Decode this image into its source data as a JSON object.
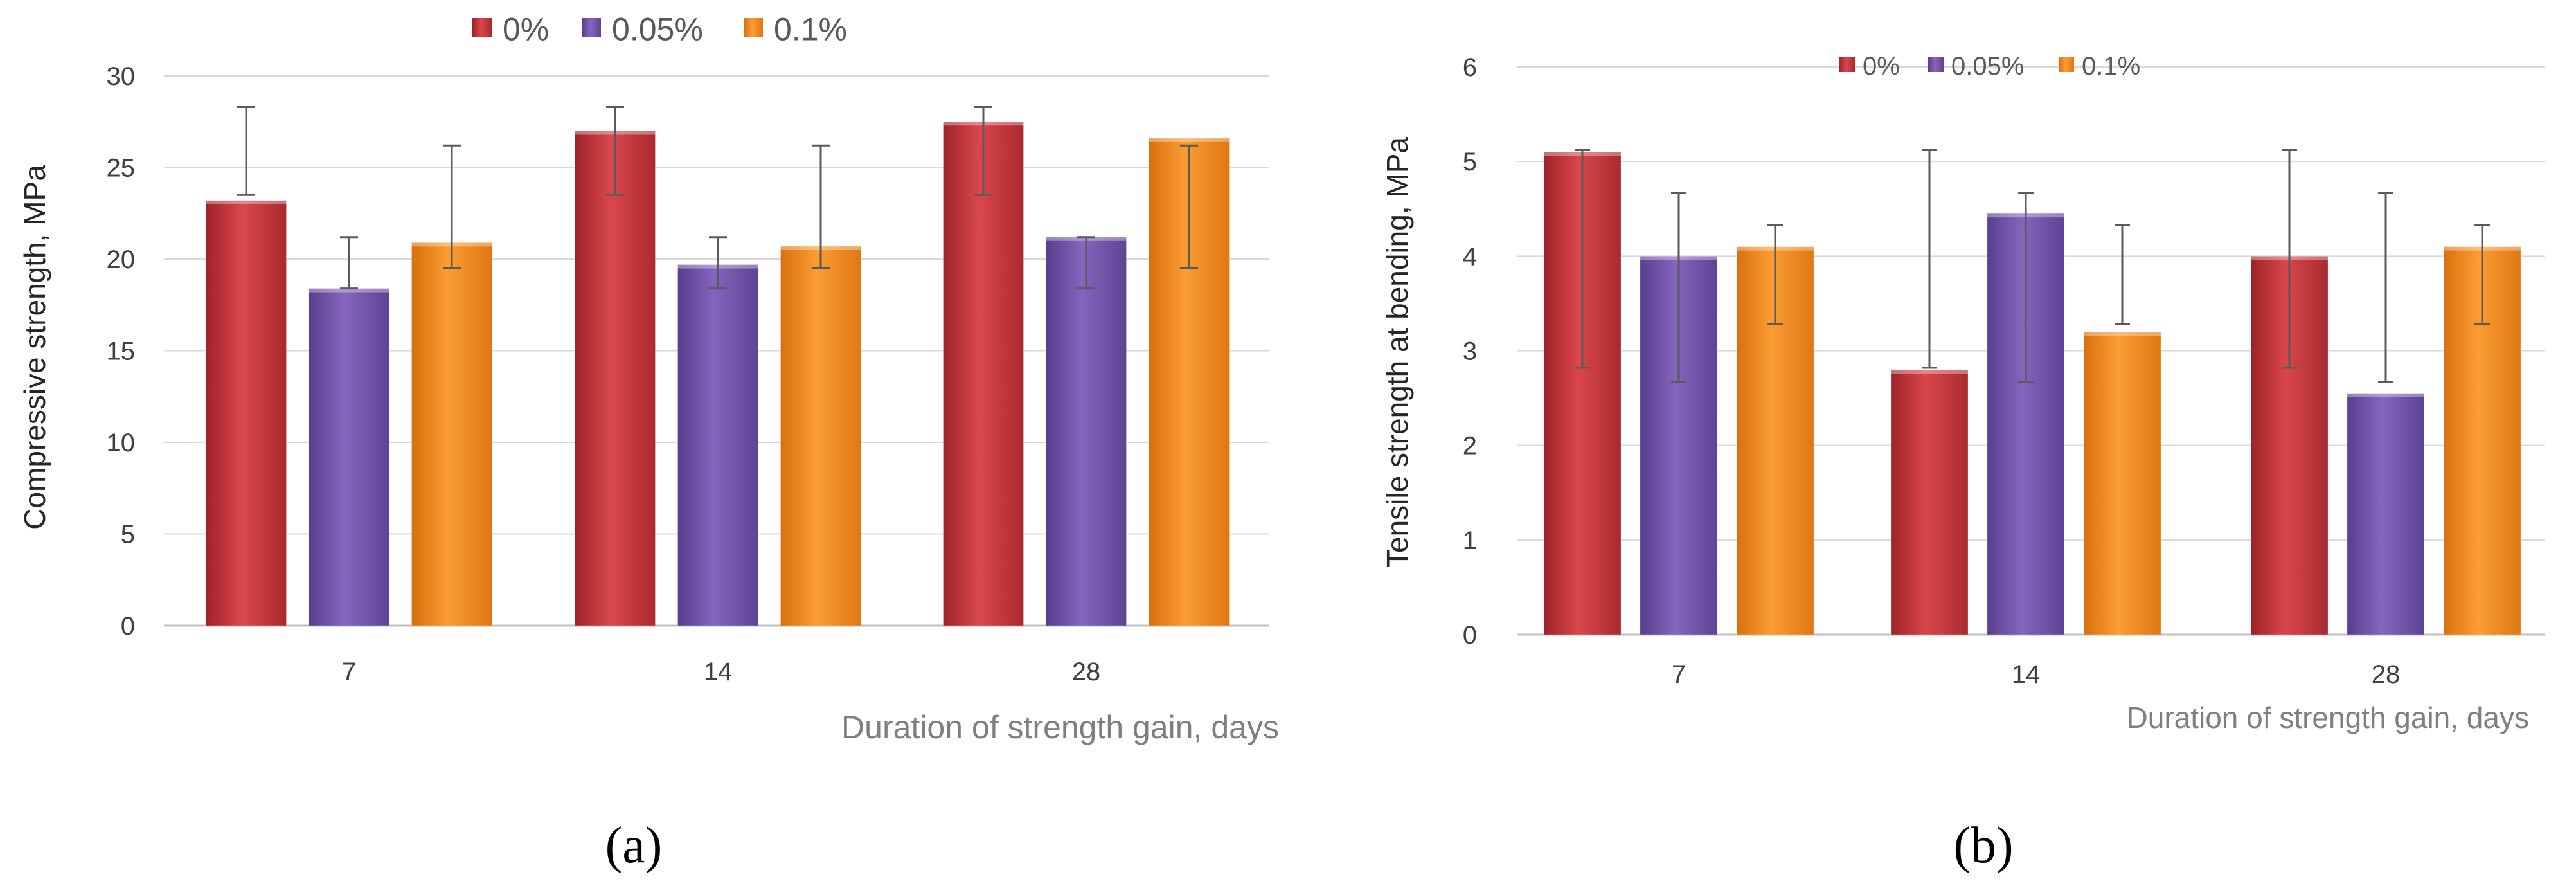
{
  "chart_data": [
    {
      "type": "bar",
      "categories": [
        "7",
        "14",
        "28"
      ],
      "series": [
        {
          "name": "0%",
          "color": "#c8363b",
          "values": [
            23.2,
            27.0,
            27.5
          ],
          "err_upper": [
            28.3,
            28.3,
            28.3
          ],
          "err_lower": [
            23.5,
            23.5,
            23.5
          ]
        },
        {
          "name": "0.05%",
          "color": "#7453ac",
          "values": [
            18.4,
            19.7,
            21.2
          ],
          "err_upper": [
            21.2,
            21.2,
            21.2
          ],
          "err_lower": [
            18.4,
            18.4,
            18.4
          ]
        },
        {
          "name": "0.1%",
          "color": "#f28c1e",
          "values": [
            20.9,
            20.7,
            26.6
          ],
          "err_upper": [
            26.2,
            26.2,
            26.2
          ],
          "err_lower": [
            19.5,
            19.5,
            19.5
          ]
        }
      ],
      "yticks": [
        "0",
        "5",
        "10",
        "15",
        "20",
        "25",
        "30"
      ],
      "ylim": [
        0,
        30
      ],
      "ylabel": "Compressive strength, MPa",
      "xlabel": "Duration of strength gain, days",
      "legend": "top-center",
      "grid": true
    },
    {
      "type": "bar",
      "categories": [
        "7",
        "14",
        "28"
      ],
      "series": [
        {
          "name": "0%",
          "color": "#c8363b",
          "values": [
            5.1,
            2.8,
            4.0
          ],
          "err_upper": [
            5.12,
            5.12,
            5.12
          ],
          "err_lower": [
            2.82,
            2.82,
            2.82
          ]
        },
        {
          "name": "0.05%",
          "color": "#7453ac",
          "values": [
            4.0,
            4.45,
            2.55
          ],
          "err_upper": [
            4.67,
            4.67,
            4.67
          ],
          "err_lower": [
            2.67,
            2.67,
            2.67
          ]
        },
        {
          "name": "0.1%",
          "color": "#f28c1e",
          "values": [
            4.1,
            3.2,
            4.1
          ],
          "err_upper": [
            4.33,
            4.33,
            4.33
          ],
          "err_lower": [
            3.28,
            3.28,
            3.28
          ]
        }
      ],
      "yticks": [
        "0",
        "1",
        "2",
        "3",
        "4",
        "5",
        "6"
      ],
      "ylim": [
        0,
        6
      ],
      "ylabel": "Tensile strength at bending, MPa",
      "xlabel": "Duration of strength gain, days",
      "legend": "top-center",
      "grid": true
    }
  ],
  "captions": {
    "a": "(a)",
    "b": "(b)"
  }
}
